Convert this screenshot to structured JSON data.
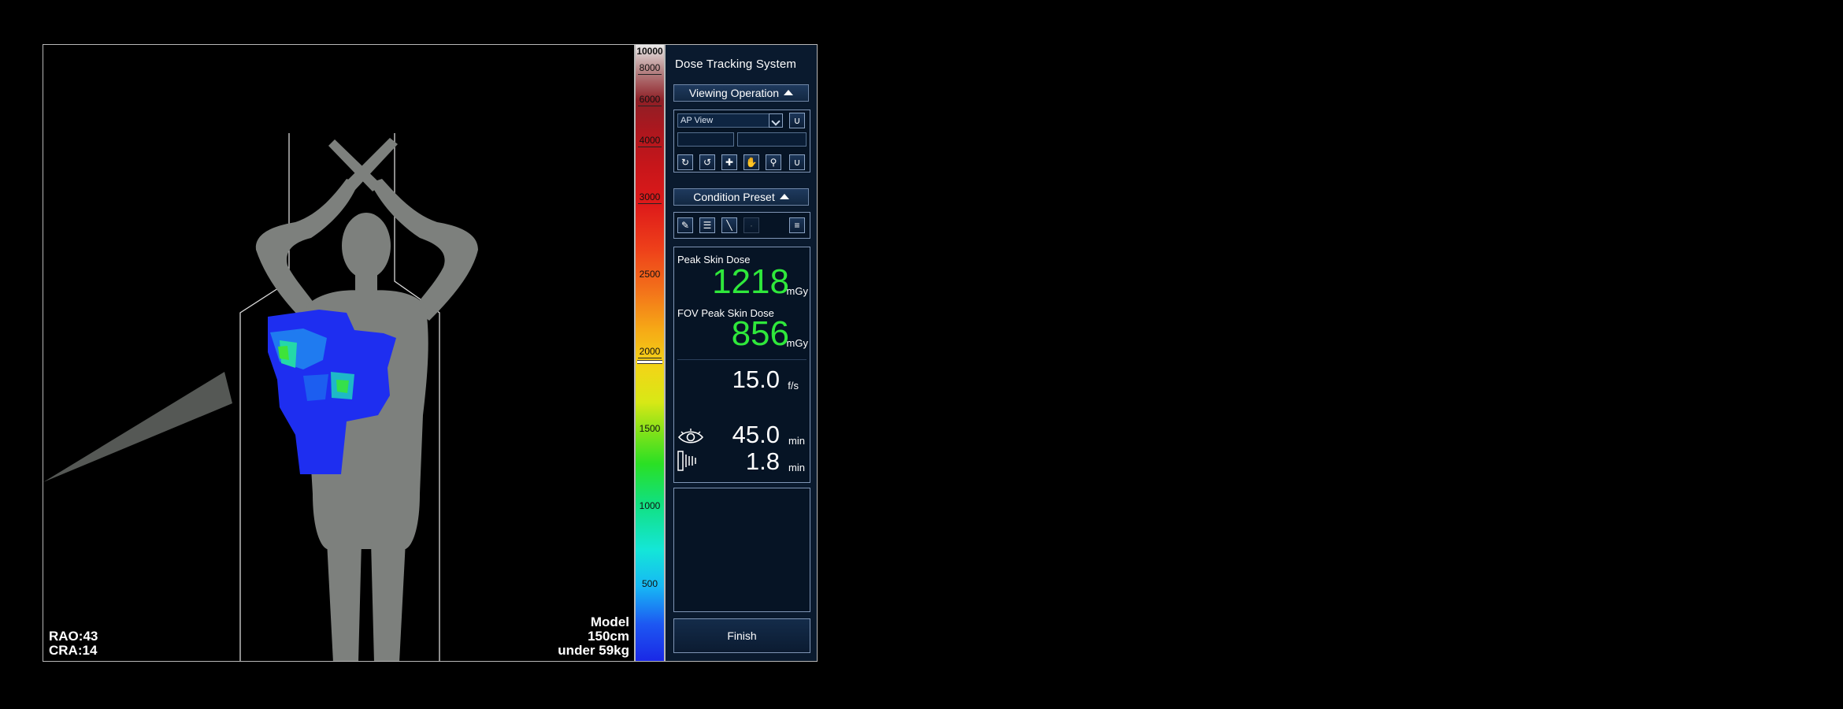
{
  "viewport": {
    "angle_lines": [
      "RAO:43",
      "CRA:14"
    ],
    "model_lines": [
      "Model",
      "150cm",
      "under 59kg"
    ]
  },
  "colorscale": {
    "max": 10000,
    "ticks": [
      "10000",
      "8000",
      "6000",
      "4000",
      "3000",
      "2500",
      "2000",
      "1500",
      "1000",
      "500"
    ],
    "current_marker_value": 2000
  },
  "panel": {
    "title": "Dose Tracking System",
    "viewing_operation": {
      "header": "Viewing Operation",
      "view_select_value": "AP View",
      "tools": [
        "rotate-icon",
        "rotate-fine-icon",
        "pan-icon",
        "hand-icon",
        "zoom-icon",
        "magnet-icon"
      ]
    },
    "condition_preset": {
      "header": "Condition Preset",
      "tools": [
        "edit-pen-icon",
        "notes-icon",
        "syringe-icon",
        "blank-icon",
        "list-icon"
      ]
    },
    "dose": {
      "peak_label": "Peak Skin Dose",
      "peak_value": "1218",
      "peak_unit": "mGy",
      "fov_label": "FOV Peak Skin Dose",
      "fov_value": "856",
      "fov_unit": "mGy",
      "frame_rate_value": "15.0",
      "frame_rate_unit": "f/s",
      "fluoro_time_value": "45.0",
      "fluoro_time_unit": "min",
      "acquisition_time_value": "1.8",
      "acquisition_time_unit": "min"
    },
    "finish_label": "Finish"
  }
}
